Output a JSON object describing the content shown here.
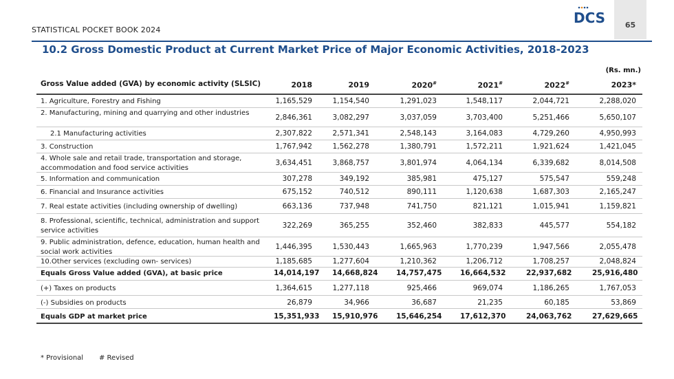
{
  "header": {
    "publication": "STATISTICAL POCKET BOOK 2024",
    "logo_text": "DCS",
    "page_number": "65",
    "brand_color": "#1f4e8c"
  },
  "title": "10.2 Gross Domestic Product at Current Market Price of Major Economic Activities, 2018-2023",
  "units": "(Rs. mn.)",
  "table": {
    "columns": [
      {
        "year": "2018",
        "mark": ""
      },
      {
        "year": "2019",
        "mark": ""
      },
      {
        "year": "2020",
        "mark": "#"
      },
      {
        "year": "2021",
        "mark": "#"
      },
      {
        "year": "2022",
        "mark": "#"
      },
      {
        "year": "2023",
        "mark": "*"
      }
    ],
    "header_label": "Gross Value added (GVA) by economic activity (SLSIC)",
    "rows": [
      {
        "label": "1. Agriculture, Forestry and Fishing",
        "values": [
          "1,165,529",
          "1,154,540",
          "1,291,023",
          "1,548,117",
          "2,044,721",
          "2,288,020"
        ]
      },
      {
        "label": "2. Manufacturing, mining and quarrying and other industries",
        "values": [
          "2,846,361",
          "3,082,297",
          "3,037,059",
          "3,703,400",
          "5,251,466",
          "5,650,107"
        ]
      },
      {
        "label": "2.1 Manufacturing activities",
        "values": [
          "2,307,822",
          "2,571,341",
          "2,548,143",
          "3,164,083",
          "4,729,260",
          "4,950,993"
        ]
      },
      {
        "label": "3. Construction",
        "values": [
          "1,767,942",
          "1,562,278",
          "1,380,791",
          "1,572,211",
          "1,921,624",
          "1,421,045"
        ]
      },
      {
        "label": "4. Whole sale and retail trade, transportation and storage, accommodation and food service activities",
        "values": [
          "3,634,451",
          "3,868,757",
          "3,801,974",
          "4,064,134",
          "6,339,682",
          "8,014,508"
        ]
      },
      {
        "label": "5. Information and communication",
        "values": [
          "307,278",
          "349,192",
          "385,981",
          "475,127",
          "575,547",
          "559,248"
        ]
      },
      {
        "label": "6. Financial and Insurance activities",
        "values": [
          "675,152",
          "740,512",
          "890,111",
          "1,120,638",
          "1,687,303",
          "2,165,247"
        ]
      },
      {
        "label": "7. Real estate activities (including ownership of dwelling)",
        "values": [
          "663,136",
          "737,948",
          "741,750",
          "821,121",
          "1,015,941",
          "1,159,821"
        ]
      },
      {
        "label": "8. Professional, scientific, technical, administration and support service activities",
        "values": [
          "322,269",
          "365,255",
          "352,460",
          "382,833",
          "445,577",
          "554,182"
        ]
      },
      {
        "label": "9. Public administration, defence, education, human health and social work activities",
        "values": [
          "1,446,395",
          "1,530,443",
          "1,665,963",
          "1,770,239",
          "1,947,566",
          "2,055,478"
        ]
      },
      {
        "label": "10.Other services (excluding own- services)",
        "values": [
          "1,185,685",
          "1,277,604",
          "1,210,362",
          "1,206,712",
          "1,708,257",
          "2,048,824"
        ]
      },
      {
        "label": "Equals Gross Value added (GVA), at basic price",
        "values": [
          "14,014,197",
          "14,668,824",
          "14,757,475",
          "16,664,532",
          "22,937,682",
          "25,916,480"
        ]
      },
      {
        "label": "(+) Taxes on products",
        "values": [
          "1,364,615",
          "1,277,118",
          "925,466",
          "969,074",
          "1,186,265",
          "1,767,053"
        ]
      },
      {
        "label": "(-) Subsidies on products",
        "values": [
          "26,879",
          "34,966",
          "36,687",
          "21,235",
          "60,185",
          "53,869"
        ]
      },
      {
        "label": "Equals GDP at market price",
        "values": [
          "15,351,933",
          "15,910,976",
          "15,646,254",
          "17,612,370",
          "24,063,762",
          "27,629,665"
        ]
      }
    ]
  },
  "footnotes": {
    "provisional": "* Provisional",
    "revised": "# Revised"
  }
}
